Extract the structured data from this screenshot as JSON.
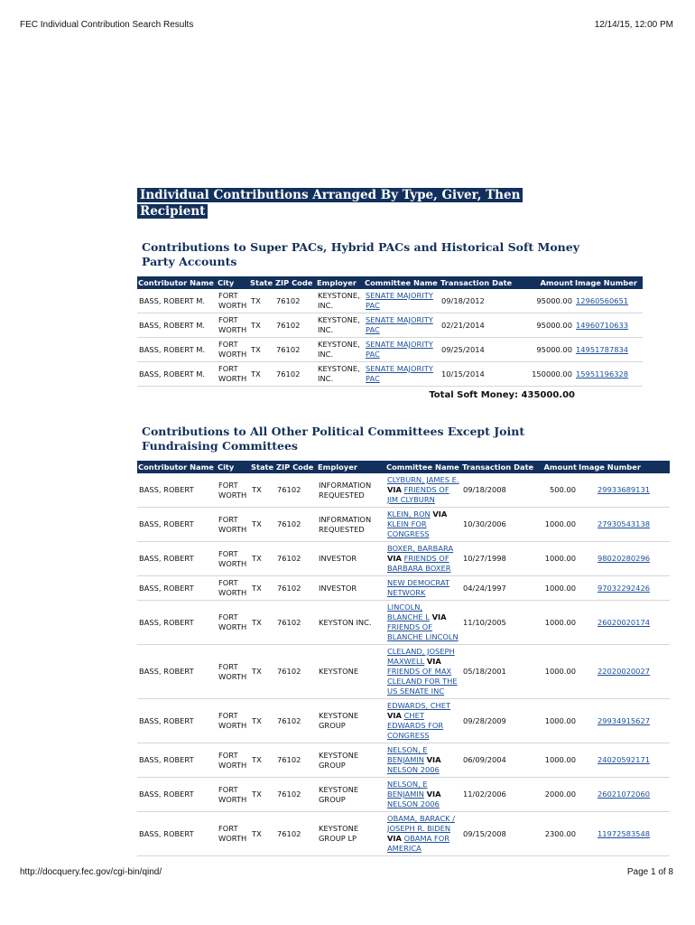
{
  "header": {
    "title": "FEC Individual Contribution Search Results",
    "timestamp": "12/14/15, 12:00 PM"
  },
  "page_title": "Individual Contributions Arranged By Type, Giver, Then Recipient",
  "sections": [
    {
      "heading": "Contributions to Super PACs, Hybrid PACs and Historical Soft Money Party Accounts",
      "columns": [
        "Contributor Name",
        "City",
        "State",
        "ZIP Code",
        "Employer",
        "Committee Name",
        "Transaction Date",
        "Amount",
        "Image Number"
      ],
      "rows": [
        {
          "contributor": "BASS, ROBERT M.",
          "city": "FORT WORTH",
          "state": "TX",
          "zip": "76102",
          "employer": "KEYSTONE, INC.",
          "committee": {
            "name": "SENATE MAJORITY PAC"
          },
          "date": "09/18/2012",
          "amount": "95000.00",
          "image_number": "12960560651"
        },
        {
          "contributor": "BASS, ROBERT M.",
          "city": "FORT WORTH",
          "state": "TX",
          "zip": "76102",
          "employer": "KEYSTONE, INC.",
          "committee": {
            "name": "SENATE MAJORITY PAC"
          },
          "date": "02/21/2014",
          "amount": "95000.00",
          "image_number": "14960710633"
        },
        {
          "contributor": "BASS, ROBERT M.",
          "city": "FORT WORTH",
          "state": "TX",
          "zip": "76102",
          "employer": "KEYSTONE, INC.",
          "committee": {
            "name": "SENATE MAJORITY PAC"
          },
          "date": "09/25/2014",
          "amount": "95000.00",
          "image_number": "14951787834"
        },
        {
          "contributor": "BASS, ROBERT M.",
          "city": "FORT WORTH",
          "state": "TX",
          "zip": "76102",
          "employer": "KEYSTONE, INC.",
          "committee": {
            "name": "SENATE MAJORITY PAC"
          },
          "date": "10/15/2014",
          "amount": "150000.00",
          "image_number": "15951196328"
        }
      ],
      "total": {
        "label": "Total Soft Money:",
        "amount": "435000.00"
      }
    },
    {
      "heading": "Contributions to All Other Political Committees Except Joint Fundraising Committees",
      "columns": [
        "Contributor Name",
        "City",
        "State",
        "ZIP Code",
        "Employer",
        "Committee Name",
        "Transaction Date",
        "Amount",
        "Image Number"
      ],
      "rows": [
        {
          "contributor": "BASS, ROBERT",
          "city": "FORT WORTH",
          "state": "TX",
          "zip": "76102",
          "employer": "INFORMATION REQUESTED",
          "committee": {
            "candidate": "CLYBURN, JAMES E.",
            "via": "VIA",
            "name": "FRIENDS OF JIM CLYBURN"
          },
          "date": "09/18/2008",
          "amount": "500.00",
          "image_number": "29933689131"
        },
        {
          "contributor": "BASS, ROBERT",
          "city": "FORT WORTH",
          "state": "TX",
          "zip": "76102",
          "employer": "INFORMATION REQUESTED",
          "committee": {
            "candidate": "KLEIN, RON",
            "via": "VIA",
            "name": "KLEIN FOR CONGRESS"
          },
          "date": "10/30/2006",
          "amount": "1000.00",
          "image_number": "27930543138"
        },
        {
          "contributor": "BASS, ROBERT",
          "city": "FORT WORTH",
          "state": "TX",
          "zip": "76102",
          "employer": "INVESTOR",
          "committee": {
            "candidate": "BOXER, BARBARA",
            "via": "VIA",
            "name": "FRIENDS OF BARBARA BOXER"
          },
          "date": "10/27/1998",
          "amount": "1000.00",
          "image_number": "98020280296"
        },
        {
          "contributor": "BASS, ROBERT",
          "city": "FORT WORTH",
          "state": "TX",
          "zip": "76102",
          "employer": "INVESTOR",
          "committee": {
            "name": "NEW DEMOCRAT NETWORK"
          },
          "date": "04/24/1997",
          "amount": "1000.00",
          "image_number": "97032292426"
        },
        {
          "contributor": "BASS, ROBERT",
          "city": "FORT WORTH",
          "state": "TX",
          "zip": "76102",
          "employer": "KEYSTON INC.",
          "committee": {
            "candidate": "LINCOLN, BLANCHE L",
            "via": "VIA",
            "name": "FRIENDS OF BLANCHE LINCOLN"
          },
          "date": "11/10/2005",
          "amount": "1000.00",
          "image_number": "26020020174"
        },
        {
          "contributor": "BASS, ROBERT",
          "city": "FORT WORTH",
          "state": "TX",
          "zip": "76102",
          "employer": "KEYSTONE",
          "committee": {
            "candidate": "CLELAND, JOSEPH MAXWELL",
            "via": "VIA",
            "name": "FRIENDS OF MAX CLELAND FOR THE US SENATE INC"
          },
          "date": "05/18/2001",
          "amount": "1000.00",
          "image_number": "22020020027"
        },
        {
          "contributor": "BASS, ROBERT",
          "city": "FORT WORTH",
          "state": "TX",
          "zip": "76102",
          "employer": "KEYSTONE GROUP",
          "committee": {
            "candidate": "EDWARDS, CHET",
            "via": "VIA",
            "name": "CHET EDWARDS FOR CONGRESS"
          },
          "date": "09/28/2009",
          "amount": "1000.00",
          "image_number": "29934915627"
        },
        {
          "contributor": "BASS, ROBERT",
          "city": "FORT WORTH",
          "state": "TX",
          "zip": "76102",
          "employer": "KEYSTONE GROUP",
          "committee": {
            "candidate": "NELSON, E BENJAMIN",
            "via": "VIA",
            "name": "NELSON 2006"
          },
          "date": "06/09/2004",
          "amount": "1000.00",
          "image_number": "24020592171"
        },
        {
          "contributor": "BASS, ROBERT",
          "city": "FORT WORTH",
          "state": "TX",
          "zip": "76102",
          "employer": "KEYSTONE GROUP",
          "committee": {
            "candidate": "NELSON, E BENJAMIN",
            "via": "VIA",
            "name": "NELSON 2006"
          },
          "date": "11/02/2006",
          "amount": "2000.00",
          "image_number": "26021072060"
        },
        {
          "contributor": "BASS, ROBERT",
          "city": "FORT WORTH",
          "state": "TX",
          "zip": "76102",
          "employer": "KEYSTONE GROUP LP",
          "committee": {
            "candidate": "OBAMA, BARACK / JOSEPH R. BIDEN",
            "via": "VIA",
            "name": "OBAMA FOR AMERICA"
          },
          "date": "09/15/2008",
          "amount": "2300.00",
          "image_number": "11972583548"
        }
      ]
    }
  ],
  "footer": {
    "url": "http://docquery.fec.gov/cgi-bin/qind/",
    "page": "Page 1 of 8"
  }
}
